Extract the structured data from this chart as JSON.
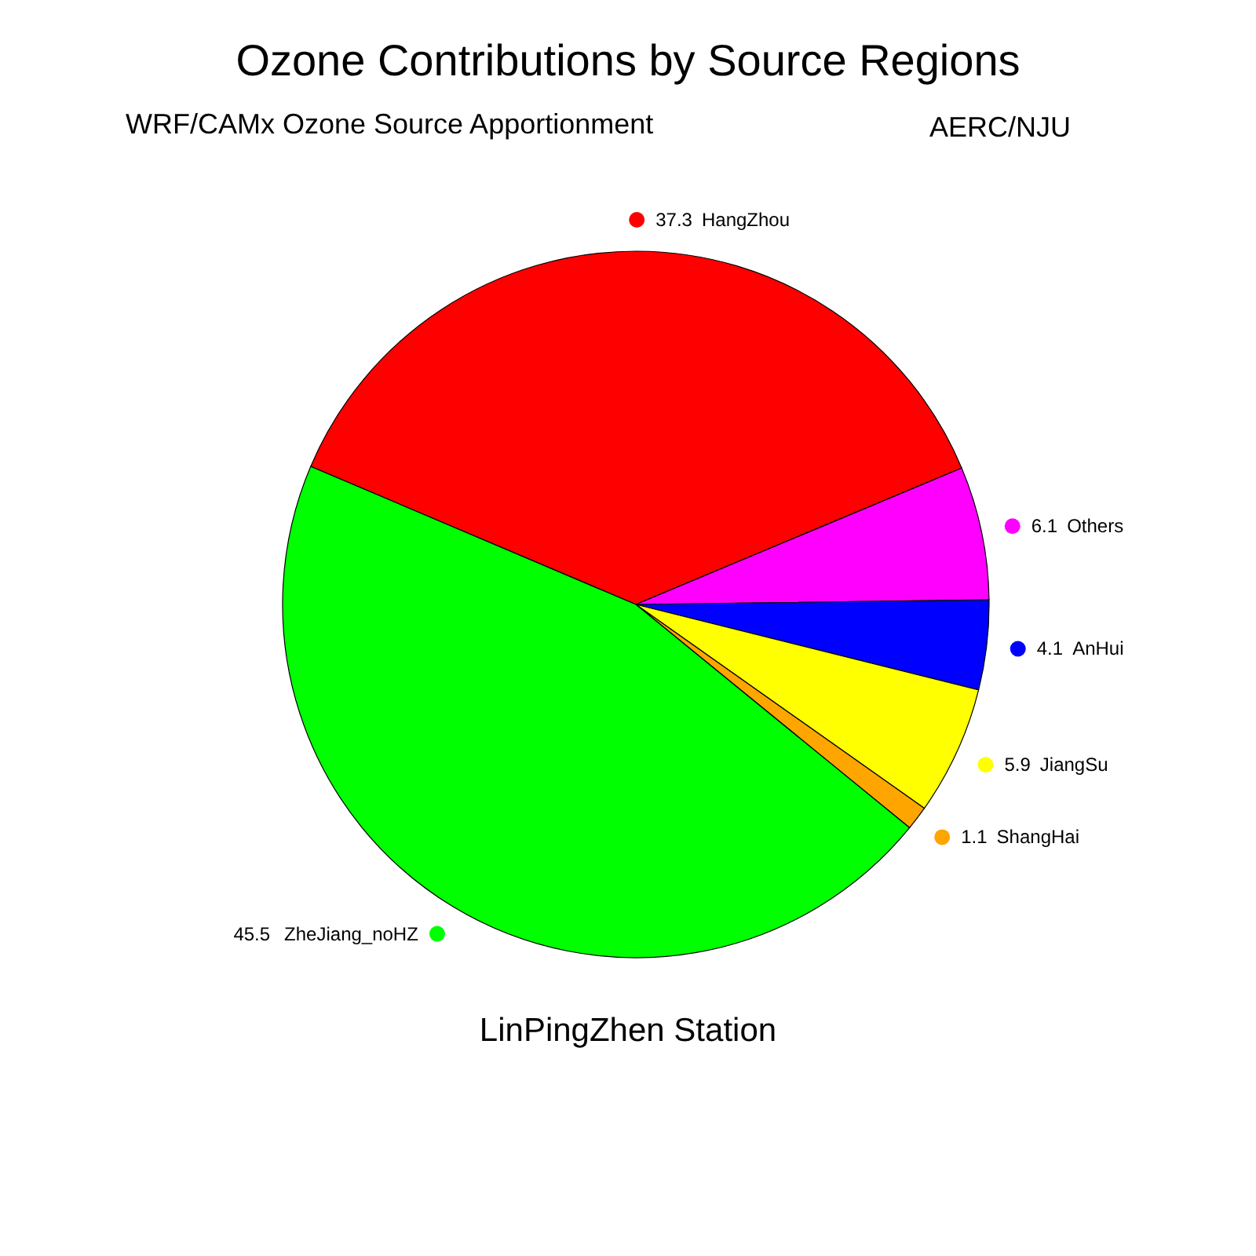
{
  "chart_data": {
    "type": "pie",
    "title": "Ozone Contributions by Source Regions",
    "subtitle": "WRF/CAMx Ozone Source Apportionment",
    "annotations": [
      "AERC/NJU",
      "LinPingZhen Station"
    ],
    "categories": [
      "HangZhou",
      "Others",
      "AnHui",
      "JiangSu",
      "ShangHai",
      "ZheJiang_noHZ"
    ],
    "values": [
      37.3,
      6.1,
      4.1,
      5.9,
      1.1,
      45.5
    ],
    "colors": [
      "#ff0000",
      "#ff00ff",
      "#0000ff",
      "#ffff00",
      "#ffa500",
      "#00ff00"
    ],
    "data_labels": true
  }
}
